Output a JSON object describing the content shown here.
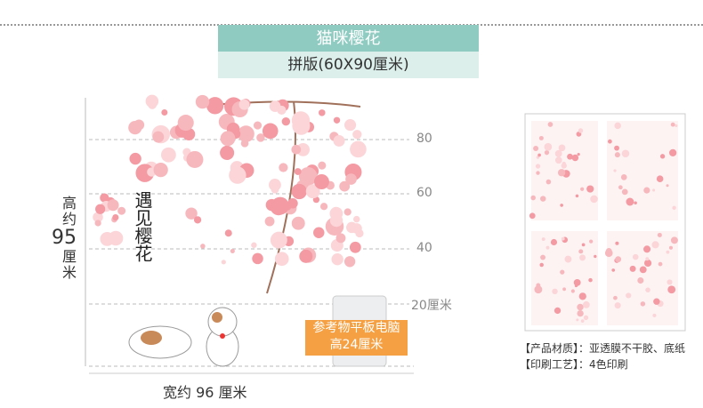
{
  "header": {
    "title": "猫咪樱花",
    "subtitle": "拼版(60X90厘米)"
  },
  "artwork": {
    "calligraphy": "遇见樱花"
  },
  "ruler": {
    "marks": [
      "80",
      "60",
      "40",
      "20厘米"
    ],
    "height": {
      "prefix": "高约",
      "value": "95",
      "unit": "厘米"
    },
    "width": "宽约 96 厘米"
  },
  "reference": {
    "line1": "参考物平板电脑",
    "line2": "高24厘米"
  },
  "specs": [
    "【产品材质】：亚透膜不干胶、底纸",
    "【印刷工艺】：4色印刷"
  ]
}
